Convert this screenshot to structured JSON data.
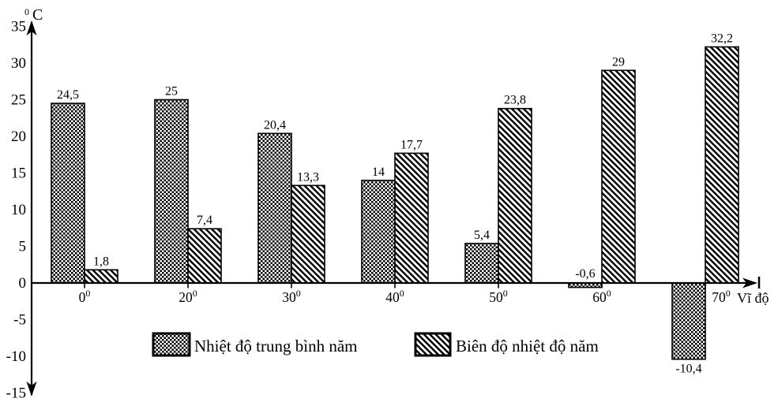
{
  "chart_data": {
    "type": "bar",
    "y_axis_title_sup": "0",
    "y_axis_title_main": "C",
    "x_axis_title": "Vĩ độ",
    "category_values": [
      "0",
      "20",
      "30",
      "40",
      "50",
      "60",
      "70"
    ],
    "category_superscript": "0",
    "y_ticks": [
      "35",
      "30",
      "25",
      "20",
      "15",
      "10",
      "5",
      "0",
      "-5",
      "-10",
      "-15"
    ],
    "ylim": [
      -15,
      35
    ],
    "grid": false,
    "legend_position": "bottom",
    "series": [
      {
        "name": "Nhiệt độ trung bình năm",
        "pattern": "checkerboard",
        "values": [
          24.5,
          25,
          20.4,
          14,
          5.4,
          -0.6,
          -10.4
        ],
        "labels": [
          "24,5",
          "25",
          "20,4",
          "14",
          "5,4",
          "-0,6",
          "-10,4"
        ]
      },
      {
        "name": "Biên độ nhiệt độ năm",
        "pattern": "diagonal-hatch",
        "values": [
          1.8,
          7.4,
          13.3,
          17.7,
          23.8,
          29,
          32.2
        ],
        "labels": [
          "1,8",
          "7,4",
          "13,3",
          "17,7",
          "23,8",
          "29",
          "32,2"
        ]
      }
    ],
    "colors": {
      "foreground": "#000000",
      "background": "#ffffff"
    }
  }
}
